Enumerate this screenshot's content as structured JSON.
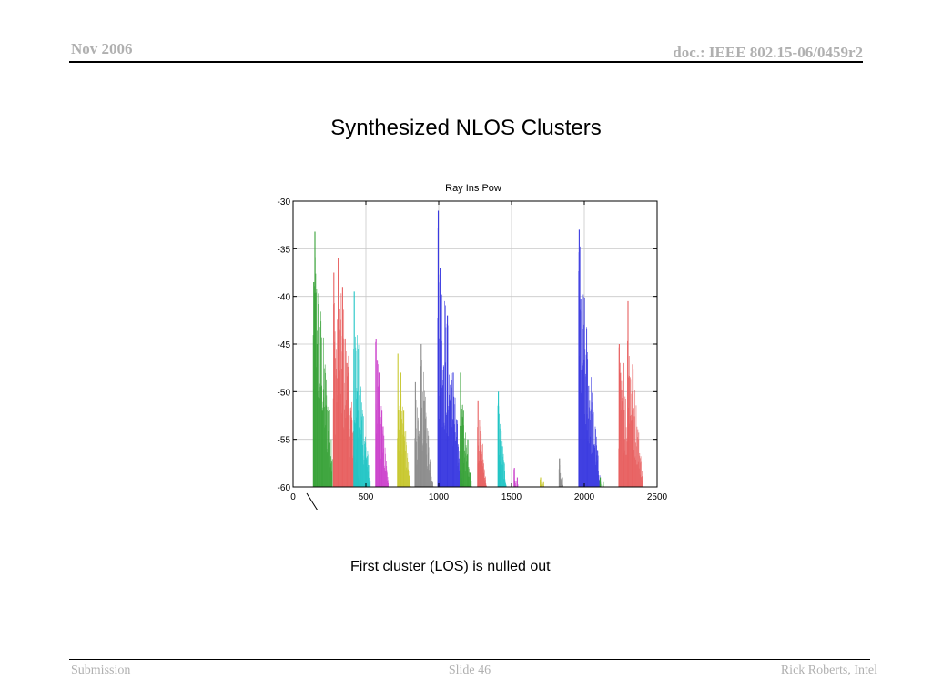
{
  "header": {
    "date": "Nov 2006",
    "doc": "doc.: IEEE 802.15-06/0459r2"
  },
  "slide": {
    "title": "Synthesized NLOS Clusters",
    "annotation": "First cluster (LOS) is nulled out"
  },
  "footer": {
    "left": "Submission",
    "center": "Slide 46",
    "right": "Rick Roberts, Intel"
  },
  "chart_data": {
    "type": "line",
    "title": "Ray Ins Pow",
    "xlabel": "",
    "ylabel": "",
    "xlim": [
      0,
      2500
    ],
    "ylim": [
      -60,
      -30
    ],
    "xticks": [
      0,
      500,
      1000,
      1500,
      2000,
      2500
    ],
    "yticks": [
      -30,
      -35,
      -40,
      -45,
      -50,
      -55,
      -60
    ],
    "grid": true,
    "series": [
      {
        "color": "#3aa33a",
        "peaks": [
          [
            150,
            -33.2
          ],
          [
            142,
            -38.5
          ],
          [
            165,
            -45
          ],
          [
            180,
            -50
          ],
          [
            200,
            -52
          ]
        ]
      },
      {
        "color": "#e86060",
        "peaks": [
          [
            280,
            -37.5
          ],
          [
            310,
            -36
          ],
          [
            340,
            -39
          ],
          [
            370,
            -47
          ],
          [
            400,
            -53
          ]
        ]
      },
      {
        "color": "#22c5c5",
        "peaks": [
          [
            420,
            -39.5
          ],
          [
            440,
            -50
          ],
          [
            460,
            -56
          ]
        ]
      },
      {
        "color": "#cc44cc",
        "peaks": [
          [
            570,
            -44.5
          ],
          [
            590,
            -48
          ],
          [
            610,
            -52
          ]
        ]
      },
      {
        "color": "#c8c830",
        "peaks": [
          [
            720,
            -46
          ],
          [
            740,
            -48
          ],
          [
            760,
            -52
          ]
        ]
      },
      {
        "color": "#8c8c8c",
        "peaks": [
          [
            840,
            -49
          ],
          [
            880,
            -45
          ],
          [
            900,
            -51
          ]
        ]
      },
      {
        "color": "#3a3ae0",
        "peaks": [
          [
            997,
            -31
          ],
          [
            1010,
            -37
          ],
          [
            1060,
            -42
          ],
          [
            1100,
            -48
          ]
        ]
      },
      {
        "color": "#3aa33a",
        "peaks": [
          [
            1150,
            -48
          ],
          [
            1170,
            -52
          ],
          [
            1200,
            -55
          ]
        ]
      },
      {
        "color": "#e86060",
        "peaks": [
          [
            1270,
            -51
          ],
          [
            1290,
            -53
          ]
        ]
      },
      {
        "color": "#22c5c5",
        "peaks": [
          [
            1410,
            -50
          ],
          [
            1420,
            -55
          ]
        ]
      },
      {
        "color": "#cc44cc",
        "peaks": [
          [
            1520,
            -58
          ],
          [
            1540,
            -59
          ]
        ]
      },
      {
        "color": "#c8c830",
        "peaks": [
          [
            1700,
            -59
          ],
          [
            1720,
            -59.5
          ]
        ]
      },
      {
        "color": "#8c8c8c",
        "peaks": [
          [
            1830,
            -57
          ],
          [
            1850,
            -59
          ]
        ]
      },
      {
        "color": "#3a3ae0",
        "peaks": [
          [
            1965,
            -33
          ],
          [
            1985,
            -47
          ],
          [
            2020,
            -54
          ],
          [
            2060,
            -58
          ]
        ]
      },
      {
        "color": "#3aa33a",
        "peaks": [
          [
            2110,
            -59
          ],
          [
            2130,
            -59.5
          ]
        ]
      },
      {
        "color": "#e86060",
        "peaks": [
          [
            2240,
            -45
          ],
          [
            2270,
            -47
          ],
          [
            2300,
            -40.5
          ],
          [
            2330,
            -52
          ]
        ]
      }
    ]
  }
}
